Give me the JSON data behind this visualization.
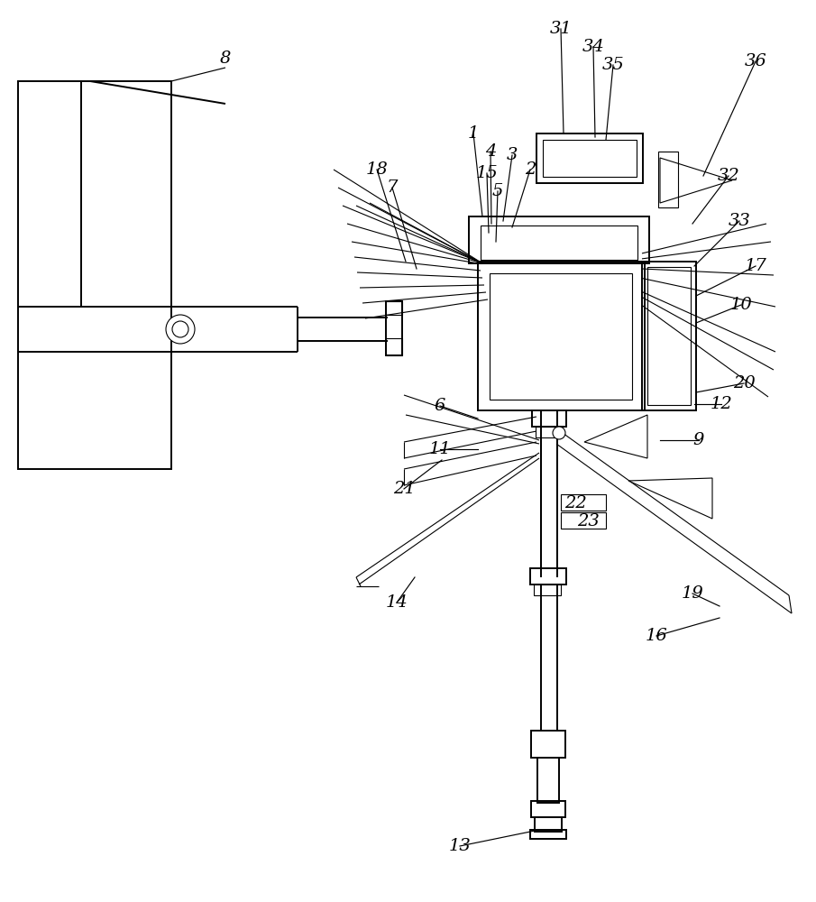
{
  "bg": "#ffffff",
  "lc": "#000000",
  "lw": 1.4,
  "tlw": 0.8,
  "fs": 14,
  "fig_w": 9.05,
  "fig_h": 10.0,
  "dpi": 100
}
